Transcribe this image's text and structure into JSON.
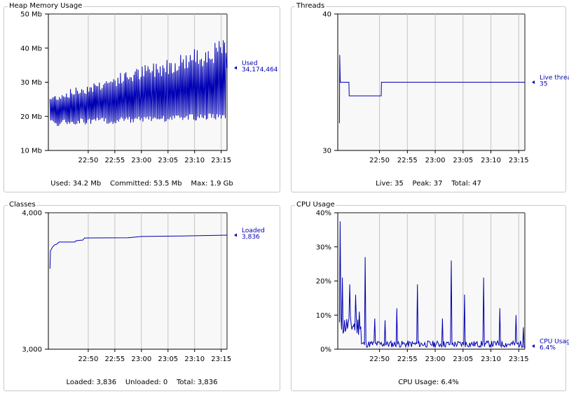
{
  "chart_data": [
    {
      "type": "line",
      "title": "Heap Memory Usage",
      "x_ticks": [
        "22:50",
        "22:55",
        "23:00",
        "23:05",
        "23:10",
        "23:15"
      ],
      "y_ticks": [
        "10 Mb",
        "20 Mb",
        "30 Mb",
        "40 Mb",
        "50 Mb"
      ],
      "ylim": [
        10,
        50
      ],
      "series": [
        {
          "name": "Used",
          "current_value": "34,174,464"
        }
      ],
      "summary": "Used: 34.2 Mb    Committed: 53.5 Mb    Max: 1.9 Gb",
      "line_color": "#0000b4"
    },
    {
      "type": "line",
      "title": "Threads",
      "x_ticks": [
        "22:50",
        "22:55",
        "23:00",
        "23:05",
        "23:10",
        "23:15"
      ],
      "y_ticks": [
        "30",
        "40"
      ],
      "ylim": [
        30,
        40
      ],
      "series": [
        {
          "name": "Live threads",
          "current_value": "35"
        }
      ],
      "summary": "Live: 35    Peak: 37    Total: 47",
      "line_color": "#0000b4"
    },
    {
      "type": "line",
      "title": "Classes",
      "x_ticks": [
        "22:50",
        "22:55",
        "23:00",
        "23:05",
        "23:10",
        "23:15"
      ],
      "y_ticks": [
        "3,000",
        "4,000"
      ],
      "ylim": [
        3000,
        4000
      ],
      "series": [
        {
          "name": "Loaded",
          "current_value": "3,836"
        }
      ],
      "summary": "Loaded: 3,836    Unloaded: 0    Total: 3,836",
      "line_color": "#0000b4"
    },
    {
      "type": "line",
      "title": "CPU Usage",
      "x_ticks": [
        "22:50",
        "22:55",
        "23:00",
        "23:05",
        "23:10",
        "23:15"
      ],
      "y_ticks": [
        "0%",
        "10%",
        "20%",
        "30%",
        "40%"
      ],
      "ylim": [
        0,
        40
      ],
      "series": [
        {
          "name": "CPU Usage",
          "current_value": "6.4%"
        }
      ],
      "summary": "CPU Usage: 6.4%",
      "line_color": "#0000b4"
    }
  ]
}
